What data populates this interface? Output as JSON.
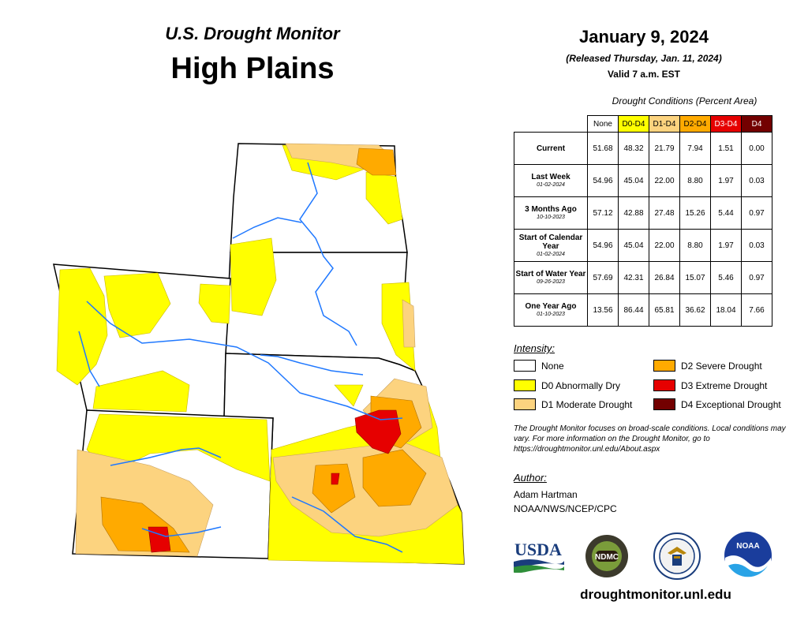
{
  "header": {
    "subtitle": "U.S. Drought Monitor",
    "title": "High Plains"
  },
  "date": {
    "main": "January 9, 2024",
    "released": "(Released Thursday, Jan. 11, 2024)",
    "valid": "Valid 7 a.m. EST"
  },
  "table": {
    "caption": "Drought Conditions (Percent Area)",
    "columns": [
      {
        "label": "None",
        "color": "#ffffff"
      },
      {
        "label": "D0-D4",
        "color": "#ffff00"
      },
      {
        "label": "D1-D4",
        "color": "#fcd37f"
      },
      {
        "label": "D2-D4",
        "color": "#ffaa00"
      },
      {
        "label": "D3-D4",
        "color": "#e60000",
        "text_color": "#ffffff"
      },
      {
        "label": "D4",
        "color": "#730000",
        "text_color": "#ffffff"
      }
    ],
    "rows": [
      {
        "label": "Current",
        "sub": "",
        "values": [
          "51.68",
          "48.32",
          "21.79",
          "7.94",
          "1.51",
          "0.00"
        ]
      },
      {
        "label": "Last Week",
        "sub": "01-02-2024",
        "values": [
          "54.96",
          "45.04",
          "22.00",
          "8.80",
          "1.97",
          "0.03"
        ]
      },
      {
        "label": "3 Months Ago",
        "sub": "10-10-2023",
        "values": [
          "57.12",
          "42.88",
          "27.48",
          "15.26",
          "5.44",
          "0.97"
        ]
      },
      {
        "label": "Start of Calendar Year",
        "sub": "01-02-2024",
        "values": [
          "54.96",
          "45.04",
          "22.00",
          "8.80",
          "1.97",
          "0.03"
        ]
      },
      {
        "label": "Start of Water Year",
        "sub": "09-26-2023",
        "values": [
          "57.69",
          "42.31",
          "26.84",
          "15.07",
          "5.46",
          "0.97"
        ]
      },
      {
        "label": "One Year Ago",
        "sub": "01-10-2023",
        "values": [
          "13.56",
          "86.44",
          "65.81",
          "36.62",
          "18.04",
          "7.66"
        ]
      }
    ]
  },
  "legend": {
    "heading": "Intensity:",
    "items": [
      {
        "label": "None",
        "color": "#ffffff"
      },
      {
        "label": "D0 Abnormally Dry",
        "color": "#ffff00"
      },
      {
        "label": "D1 Moderate Drought",
        "color": "#fcd37f"
      },
      {
        "label": "D2 Severe Drought",
        "color": "#ffaa00"
      },
      {
        "label": "D3 Extreme Drought",
        "color": "#e60000"
      },
      {
        "label": "D4 Exceptional Drought",
        "color": "#730000"
      }
    ]
  },
  "note": "The Drought Monitor focuses on broad-scale conditions. Local conditions may vary. For more information on the Drought Monitor, go to https://droughtmonitor.unl.edu/About.aspx",
  "author": {
    "heading": "Author:",
    "name": "Adam Hartman",
    "org": "NOAA/NWS/NCEP/CPC"
  },
  "logos": {
    "usda": "USDA",
    "ndmc": "NDMC",
    "noaa": "NOAA"
  },
  "website": "droughtmonitor.unl.edu",
  "map": {
    "region": "High Plains",
    "states": [
      "North Dakota",
      "South Dakota",
      "Wyoming",
      "Nebraska",
      "Colorado",
      "Kansas"
    ]
  }
}
